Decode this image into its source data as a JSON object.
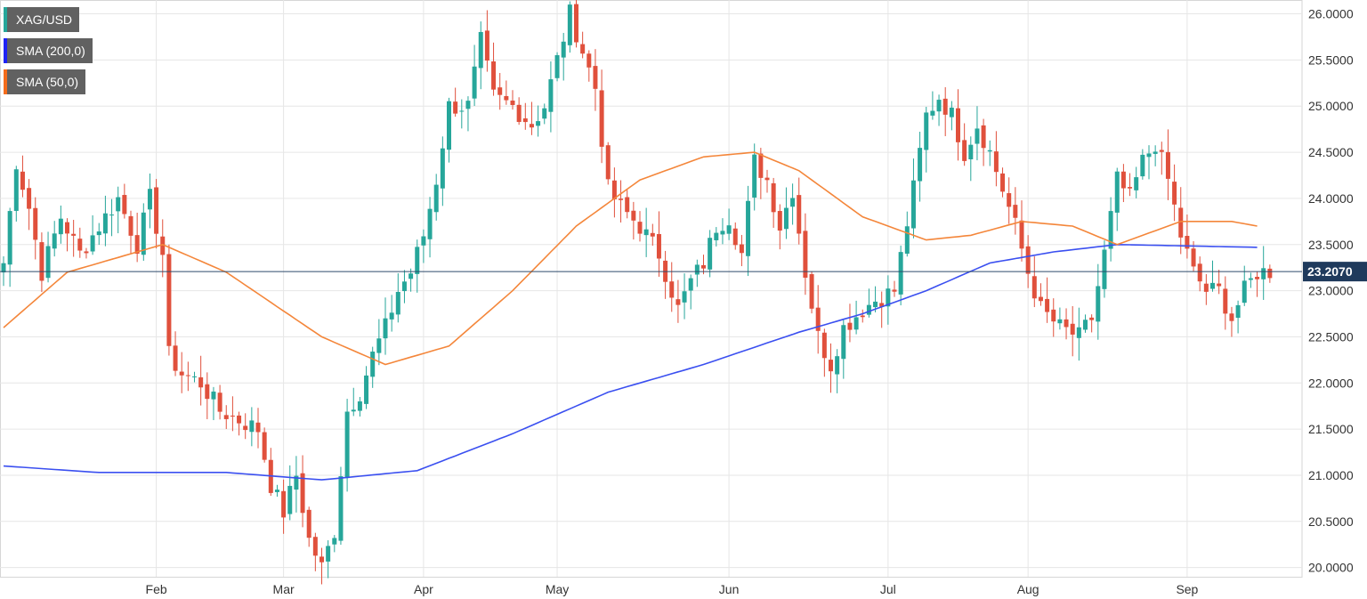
{
  "chart_data": {
    "type": "candlestick",
    "symbol": "XAG/USD",
    "legend": [
      {
        "label": "XAG/USD",
        "color": "#26a69a"
      },
      {
        "label": "SMA (200,0)",
        "color": "#1e22f5"
      },
      {
        "label": "SMA (50,0)",
        "color": "#f46c1b"
      }
    ],
    "last_price": "23.2070",
    "last_price_value": 23.207,
    "y_ticks": [
      "20.0000",
      "20.5000",
      "21.0000",
      "21.5000",
      "22.0000",
      "22.5000",
      "23.0000",
      "23.5000",
      "24.0000",
      "24.5000",
      "25.0000",
      "25.5000",
      "26.0000"
    ],
    "ylim": [
      19.9,
      26.15
    ],
    "x_labels": [
      {
        "label": "Feb",
        "index": 24
      },
      {
        "label": "Mar",
        "index": 44
      },
      {
        "label": "Apr",
        "index": 66
      },
      {
        "label": "May",
        "index": 87
      },
      {
        "label": "Jun",
        "index": 114
      },
      {
        "label": "Jul",
        "index": 139
      },
      {
        "label": "Aug",
        "index": 161
      },
      {
        "label": "Sep",
        "index": 186
      }
    ],
    "colors": {
      "up": "#26a69a",
      "down": "#e0503c",
      "sma200": "#3a4ff0",
      "sma50": "#f4863a",
      "price_line": "#2e4a6b",
      "grid": "#e6e6e6"
    },
    "close_keyframes": [
      [
        0,
        23.3
      ],
      [
        2,
        24.4
      ],
      [
        4,
        23.9
      ],
      [
        6,
        23.2
      ],
      [
        9,
        23.8
      ],
      [
        12,
        23.4
      ],
      [
        15,
        23.7
      ],
      [
        18,
        24.0
      ],
      [
        21,
        23.5
      ],
      [
        23,
        24.0
      ],
      [
        25,
        23.4
      ],
      [
        26,
        22.3
      ],
      [
        28,
        22.1
      ],
      [
        31,
        22.0
      ],
      [
        34,
        21.7
      ],
      [
        37,
        21.6
      ],
      [
        40,
        21.5
      ],
      [
        42,
        20.9
      ],
      [
        44,
        20.6
      ],
      [
        46,
        21.0
      ],
      [
        48,
        20.3
      ],
      [
        50,
        20.0
      ],
      [
        52,
        20.4
      ],
      [
        54,
        21.7
      ],
      [
        56,
        21.9
      ],
      [
        58,
        22.3
      ],
      [
        60,
        22.6
      ],
      [
        62,
        23.0
      ],
      [
        64,
        23.2
      ],
      [
        66,
        23.6
      ],
      [
        68,
        24.2
      ],
      [
        70,
        25.0
      ],
      [
        73,
        25.0
      ],
      [
        75,
        25.7
      ],
      [
        77,
        25.1
      ],
      [
        80,
        25.0
      ],
      [
        83,
        24.8
      ],
      [
        85,
        25.0
      ],
      [
        87,
        25.5
      ],
      [
        89,
        26.0
      ],
      [
        91,
        25.6
      ],
      [
        93,
        25.2
      ],
      [
        95,
        24.1
      ],
      [
        97,
        23.9
      ],
      [
        100,
        23.7
      ],
      [
        103,
        23.4
      ],
      [
        106,
        22.8
      ],
      [
        108,
        23.1
      ],
      [
        110,
        23.3
      ],
      [
        112,
        23.7
      ],
      [
        114,
        23.8
      ],
      [
        116,
        23.4
      ],
      [
        118,
        24.4
      ],
      [
        120,
        24.2
      ],
      [
        122,
        23.7
      ],
      [
        124,
        24.1
      ],
      [
        126,
        23.2
      ],
      [
        128,
        22.5
      ],
      [
        130,
        22.2
      ],
      [
        132,
        22.6
      ],
      [
        135,
        22.8
      ],
      [
        137,
        22.9
      ],
      [
        140,
        23.0
      ],
      [
        143,
        24.1
      ],
      [
        145,
        24.9
      ],
      [
        147,
        25.1
      ],
      [
        149,
        24.9
      ],
      [
        151,
        24.5
      ],
      [
        153,
        24.8
      ],
      [
        155,
        24.5
      ],
      [
        157,
        24.1
      ],
      [
        159,
        23.7
      ],
      [
        161,
        23.2
      ],
      [
        163,
        22.8
      ],
      [
        166,
        22.6
      ],
      [
        169,
        22.5
      ],
      [
        171,
        22.7
      ],
      [
        173,
        23.4
      ],
      [
        175,
        24.2
      ],
      [
        177,
        24.0
      ],
      [
        179,
        24.4
      ],
      [
        181,
        24.6
      ],
      [
        183,
        24.2
      ],
      [
        185,
        23.6
      ],
      [
        187,
        23.2
      ],
      [
        189,
        23.0
      ],
      [
        191,
        23.0
      ],
      [
        193,
        22.7
      ],
      [
        195,
        23.0
      ],
      [
        197,
        23.2
      ],
      [
        199,
        23.21
      ]
    ],
    "sma50": [
      [
        0,
        22.6
      ],
      [
        10,
        23.2
      ],
      [
        25,
        23.5
      ],
      [
        35,
        23.2
      ],
      [
        50,
        22.5
      ],
      [
        60,
        22.2
      ],
      [
        70,
        22.4
      ],
      [
        80,
        23.0
      ],
      [
        90,
        23.7
      ],
      [
        100,
        24.2
      ],
      [
        110,
        24.45
      ],
      [
        118,
        24.5
      ],
      [
        125,
        24.3
      ],
      [
        135,
        23.8
      ],
      [
        145,
        23.55
      ],
      [
        152,
        23.6
      ],
      [
        160,
        23.75
      ],
      [
        168,
        23.7
      ],
      [
        175,
        23.5
      ],
      [
        185,
        23.75
      ],
      [
        193,
        23.75
      ],
      [
        197,
        23.7
      ]
    ],
    "sma200": [
      [
        0,
        21.1
      ],
      [
        15,
        21.03
      ],
      [
        35,
        21.03
      ],
      [
        50,
        20.95
      ],
      [
        65,
        21.05
      ],
      [
        80,
        21.45
      ],
      [
        95,
        21.9
      ],
      [
        110,
        22.2
      ],
      [
        125,
        22.55
      ],
      [
        135,
        22.75
      ],
      [
        145,
        23.0
      ],
      [
        155,
        23.3
      ],
      [
        165,
        23.42
      ],
      [
        175,
        23.5
      ],
      [
        197,
        23.47
      ]
    ]
  }
}
